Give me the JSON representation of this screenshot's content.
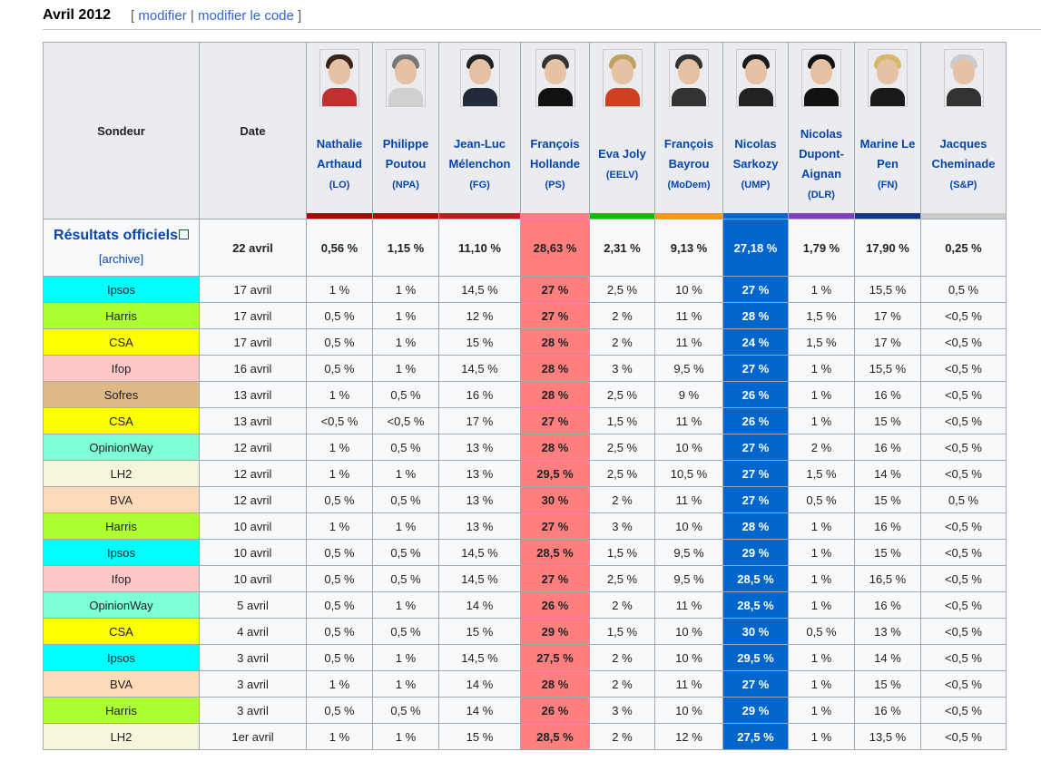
{
  "section": {
    "title": "Avril 2012",
    "edit_label": "modifier",
    "edit_code_label": "modifier le code",
    "bracket_open": "[",
    "bracket_close": "]",
    "separator": "|"
  },
  "table": {
    "header": {
      "pollster": "Sondeur",
      "date": "Date"
    },
    "candidates": [
      {
        "name": "Nathalie Arthaud",
        "party": "(LO)",
        "color": "#b00000"
      },
      {
        "name": "Philippe Poutou",
        "party": "(NPA)",
        "color": "#bb0000"
      },
      {
        "name": "Jean-Luc Mélenchon",
        "party": "(FG)",
        "color": "#c9191e"
      },
      {
        "name": "François Hollande",
        "party": "(PS)",
        "color": "#ff8080"
      },
      {
        "name": "Eva Joly",
        "party": "(EELV)",
        "color": "#00c000"
      },
      {
        "name": "François Bayrou",
        "party": "(MoDem)",
        "color": "#ff9900"
      },
      {
        "name": "Nicolas Sarkozy",
        "party": "(UMP)",
        "color": "#0066cc"
      },
      {
        "name": "Nicolas Dupont-Aignan",
        "party": "(DLR)",
        "color": "#8040c0"
      },
      {
        "name": "Marine Le Pen",
        "party": "(FN)",
        "color": "#0d378a"
      },
      {
        "name": "Jacques Cheminade",
        "party": "(S&P)",
        "color": "#cccccc"
      }
    ],
    "official": {
      "label": "Résultats officiels",
      "archive": "[archive]",
      "date": "22 avril",
      "values": [
        "0,56 %",
        "1,15 %",
        "11,10 %",
        "28,63 %",
        "2,31 %",
        "9,13 %",
        "27,18 %",
        "1,79 %",
        "17,90 %",
        "0,25 %"
      ]
    },
    "rows": [
      {
        "pollster": "Ipsos",
        "color": "#00ffff",
        "date": "17 avril",
        "values": [
          "1 %",
          "1 %",
          "14,5 %",
          "27 %",
          "2,5 %",
          "10 %",
          "27 %",
          "1 %",
          "15,5 %",
          "0,5 %"
        ]
      },
      {
        "pollster": "Harris",
        "color": "#adff2f",
        "date": "17 avril",
        "values": [
          "0,5 %",
          "1 %",
          "12 %",
          "27 %",
          "2 %",
          "11 %",
          "28 %",
          "1,5 %",
          "17 %",
          "<0,5 %"
        ]
      },
      {
        "pollster": "CSA",
        "color": "#ffff00",
        "date": "17 avril",
        "values": [
          "0,5 %",
          "1 %",
          "15 %",
          "28 %",
          "2 %",
          "11 %",
          "24 %",
          "1,5 %",
          "17 %",
          "<0,5 %"
        ]
      },
      {
        "pollster": "Ifop",
        "color": "#ffc8c8",
        "date": "16 avril",
        "values": [
          "0,5 %",
          "1 %",
          "14,5 %",
          "28 %",
          "3 %",
          "9,5 %",
          "27 %",
          "1 %",
          "15,5 %",
          "<0,5 %"
        ]
      },
      {
        "pollster": "Sofres",
        "color": "#deb887",
        "date": "13 avril",
        "values": [
          "1 %",
          "0,5 %",
          "16 %",
          "28 %",
          "2,5 %",
          "9 %",
          "26 %",
          "1 %",
          "16 %",
          "<0,5 %"
        ]
      },
      {
        "pollster": "CSA",
        "color": "#ffff00",
        "date": "13 avril",
        "values": [
          "<0,5 %",
          "<0,5 %",
          "17 %",
          "27 %",
          "1,5 %",
          "11 %",
          "26 %",
          "1 %",
          "15 %",
          "<0,5 %"
        ]
      },
      {
        "pollster": "OpinionWay",
        "color": "#7fffd4",
        "date": "12 avril",
        "values": [
          "1 %",
          "0,5 %",
          "13 %",
          "28 %",
          "2,5 %",
          "10 %",
          "27 %",
          "2 %",
          "16 %",
          "<0,5 %"
        ]
      },
      {
        "pollster": "LH2",
        "color": "#f5f5dc",
        "date": "12 avril",
        "values": [
          "1 %",
          "1 %",
          "13 %",
          "29,5 %",
          "2,5 %",
          "10,5 %",
          "27 %",
          "1,5 %",
          "14 %",
          "<0,5 %"
        ]
      },
      {
        "pollster": "BVA",
        "color": "#ffdab9",
        "date": "12 avril",
        "values": [
          "0,5 %",
          "0,5 %",
          "13 %",
          "30 %",
          "2 %",
          "11 %",
          "27 %",
          "0,5 %",
          "15 %",
          "0,5 %"
        ]
      },
      {
        "pollster": "Harris",
        "color": "#adff2f",
        "date": "10 avril",
        "values": [
          "1 %",
          "1 %",
          "13 %",
          "27 %",
          "3 %",
          "10 %",
          "28 %",
          "1 %",
          "16 %",
          "<0,5 %"
        ]
      },
      {
        "pollster": "Ipsos",
        "color": "#00ffff",
        "date": "10 avril",
        "values": [
          "0,5 %",
          "0,5 %",
          "14,5 %",
          "28,5 %",
          "1,5 %",
          "9,5 %",
          "29 %",
          "1 %",
          "15 %",
          "<0,5 %"
        ]
      },
      {
        "pollster": "Ifop",
        "color": "#ffc8c8",
        "date": "10 avril",
        "values": [
          "0,5 %",
          "0,5 %",
          "14,5 %",
          "27 %",
          "2,5 %",
          "9,5 %",
          "28,5 %",
          "1 %",
          "16,5 %",
          "<0,5 %"
        ]
      },
      {
        "pollster": "OpinionWay",
        "color": "#7fffd4",
        "date": "5 avril",
        "values": [
          "0,5 %",
          "1 %",
          "14 %",
          "26 %",
          "2 %",
          "11 %",
          "28,5 %",
          "1 %",
          "16 %",
          "<0,5 %"
        ]
      },
      {
        "pollster": "CSA",
        "color": "#ffff00",
        "date": "4 avril",
        "values": [
          "0,5 %",
          "0,5 %",
          "15 %",
          "29 %",
          "1,5 %",
          "10 %",
          "30 %",
          "0,5 %",
          "13 %",
          "<0,5 %"
        ]
      },
      {
        "pollster": "Ipsos",
        "color": "#00ffff",
        "date": "3 avril",
        "values": [
          "0,5 %",
          "1 %",
          "14,5 %",
          "27,5 %",
          "2 %",
          "10 %",
          "29,5 %",
          "1 %",
          "14 %",
          "<0,5 %"
        ]
      },
      {
        "pollster": "BVA",
        "color": "#ffdab9",
        "date": "3 avril",
        "values": [
          "1 %",
          "1 %",
          "14 %",
          "28 %",
          "2 %",
          "11 %",
          "27 %",
          "1 %",
          "15 %",
          "<0,5 %"
        ]
      },
      {
        "pollster": "Harris",
        "color": "#adff2f",
        "date": "3 avril",
        "values": [
          "0,5 %",
          "0,5 %",
          "14 %",
          "26 %",
          "3 %",
          "10 %",
          "29 %",
          "1 %",
          "16 %",
          "<0,5 %"
        ]
      },
      {
        "pollster": "LH2",
        "color": "#f5f5dc",
        "date": "1er avril",
        "values": [
          "1 %",
          "1 %",
          "15 %",
          "28,5 %",
          "2 %",
          "12 %",
          "27,5 %",
          "1 %",
          "13,5 %",
          "<0,5 %"
        ]
      }
    ]
  }
}
